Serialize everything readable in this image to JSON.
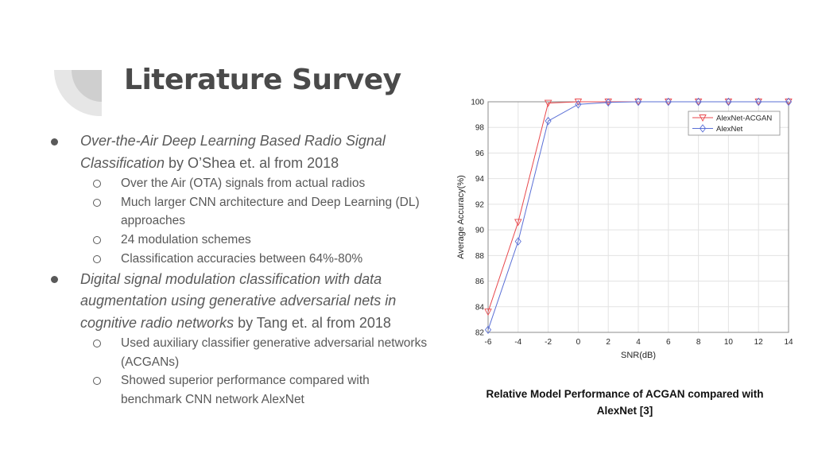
{
  "slide": {
    "title": "Literature Survey",
    "items": [
      {
        "title_italic": "Over-the-Air Deep Learning Based Radio Signal Classification",
        "title_rest": " by O’Shea et. al from 2018",
        "subitems": [
          "Over the Air (OTA) signals from actual radios",
          "Much larger CNN architecture and Deep Learning (DL) approaches",
          "24 modulation schemes",
          "Classification accuracies between 64%-80%"
        ]
      },
      {
        "title_italic": "Digital signal modulation classification with data augmentation using generative adversarial nets in cognitive radio networks",
        "title_rest": " by Tang et. al from 2018",
        "subitems": [
          "Used auxiliary classifier generative adversarial networks (ACGANs)",
          "Showed superior performance compared with benchmark CNN network AlexNet"
        ]
      }
    ],
    "caption": "Relative Model Performance of ACGAN compared with AlexNet [3]"
  },
  "chart_data": {
    "type": "line",
    "xlabel": "SNR(dB)",
    "ylabel": "Average Accuracy(%)",
    "x": [
      -6,
      -4,
      -2,
      0,
      2,
      4,
      6,
      8,
      10,
      12,
      14
    ],
    "xlim": [
      -6,
      14
    ],
    "ylim": [
      82,
      100
    ],
    "xticks": [
      "-6",
      "-4",
      "-2",
      "0",
      "2",
      "4",
      "6",
      "8",
      "10",
      "12",
      "14"
    ],
    "yticks": [
      "82",
      "84",
      "86",
      "88",
      "90",
      "92",
      "94",
      "96",
      "98",
      "100"
    ],
    "grid": true,
    "legend_position": "top-right",
    "series": [
      {
        "name": "AlexNet-ACGAN",
        "color": "#e8474c",
        "marker": "triangle-down",
        "values": [
          83.6,
          90.6,
          99.9,
          100.0,
          100.0,
          100.0,
          100.0,
          100.0,
          100.0,
          100.0,
          100.0
        ]
      },
      {
        "name": "AlexNet",
        "color": "#5a6fd6",
        "marker": "diamond",
        "values": [
          82.2,
          89.1,
          98.5,
          99.8,
          99.95,
          100.0,
          100.0,
          100.0,
          100.0,
          100.0,
          100.0
        ]
      }
    ]
  }
}
